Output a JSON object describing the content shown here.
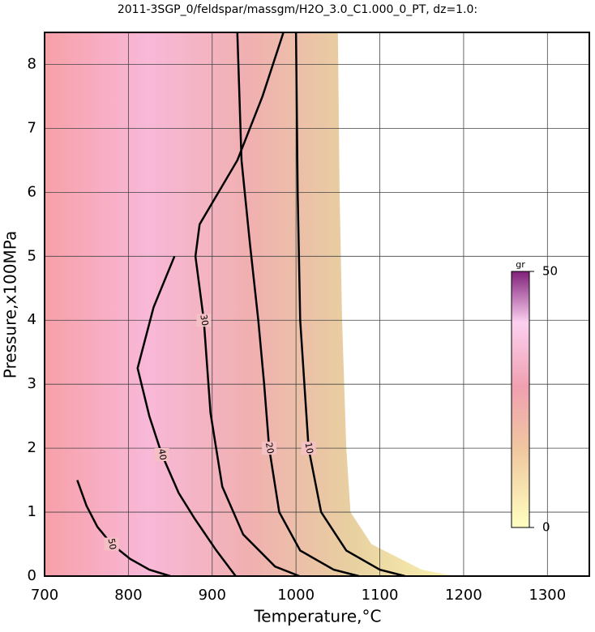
{
  "chart_data": {
    "type": "contour",
    "title": "2011-3SGP_0/feldspar/massgm/H2O_3.0_C1.000_0_PT, dz=1.0:",
    "x_label": "Temperature,°C",
    "y_label": "Pressure,x100MPa",
    "xlim": [
      700,
      1350
    ],
    "xticks": [
      700,
      800,
      900,
      1000,
      1100,
      1200,
      1300
    ],
    "ylim": [
      0,
      8.5
    ],
    "yticks": [
      0,
      1,
      2,
      3,
      4,
      5,
      6,
      7,
      8
    ],
    "grid": true,
    "extent": {
      "x": [
        700,
        1050,
        1052,
        1055,
        1060,
        1065,
        1090,
        1150,
        1190,
        700
      ],
      "y": [
        8.5,
        8.5,
        6,
        4,
        2,
        1,
        0.5,
        0.1,
        0,
        0
      ]
    },
    "contours": [
      {
        "level": 10,
        "x": [
          1000,
          1002,
          1005,
          1010,
          1015,
          1030,
          1060,
          1100,
          1130
        ],
        "y": [
          8.5,
          6,
          4,
          3,
          2,
          1,
          0.4,
          0.1,
          0
        ]
      },
      {
        "level": 20,
        "x": [
          930,
          935,
          945,
          955,
          962,
          968,
          980,
          1005,
          1045,
          1075
        ],
        "y": [
          8.5,
          6.5,
          5.2,
          4,
          3,
          2,
          1,
          0.4,
          0.1,
          0
        ]
      },
      {
        "level": 30,
        "x": [
          985,
          960,
          930,
          885,
          880,
          890,
          898,
          912,
          937,
          975,
          1004
        ],
        "y": [
          8.5,
          7.5,
          6.5,
          5.5,
          5,
          4,
          2.55,
          1.4,
          0.65,
          0.15,
          0
        ]
      },
      {
        "level": 40,
        "x": [
          855,
          830,
          811,
          825,
          840,
          860,
          879,
          905,
          928
        ],
        "y": [
          5,
          4.2,
          3.25,
          2.5,
          1.9,
          1.3,
          0.9,
          0.4,
          0
        ]
      },
      {
        "level": 50,
        "x": [
          739,
          750,
          763,
          780,
          802,
          825,
          850
        ],
        "y": [
          1.5,
          1.1,
          0.77,
          0.5,
          0.27,
          0.1,
          0
        ]
      }
    ],
    "colorbar": {
      "label": "gr",
      "ticks": [
        0,
        50
      ],
      "lim": [
        0,
        50
      ]
    }
  }
}
